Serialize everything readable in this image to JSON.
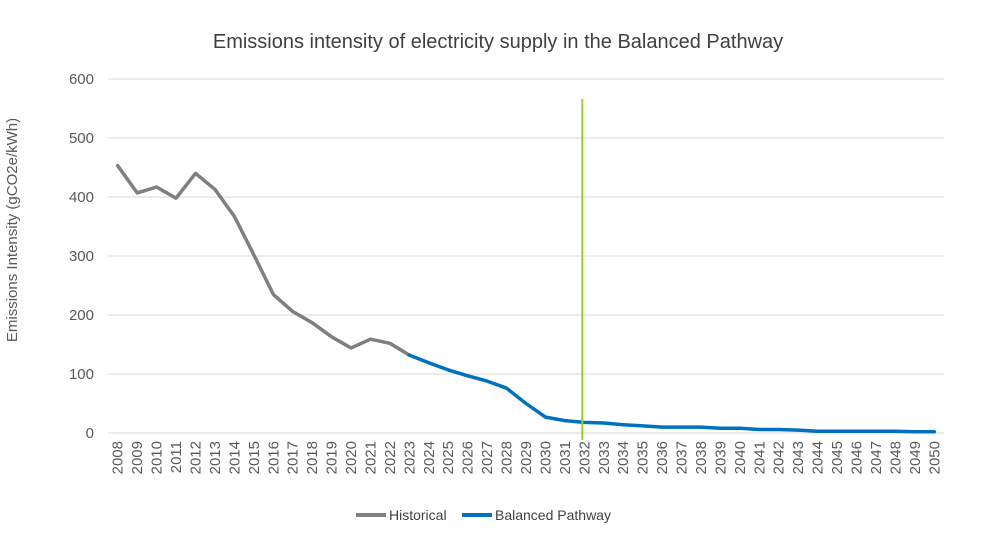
{
  "chart_data": {
    "type": "line",
    "title": "Emissions intensity of electricity supply in the Balanced Pathway",
    "xlabel": "",
    "ylabel": "Emissions Intensity (gCO2e/kWh)",
    "ylim": [
      0,
      600
    ],
    "yticks": [
      0,
      100,
      200,
      300,
      400,
      500,
      600
    ],
    "grid": true,
    "legend_position": "bottom",
    "categories": [
      "2008",
      "2009",
      "2010",
      "2011",
      "2012",
      "2013",
      "2014",
      "2015",
      "2016",
      "2017",
      "2018",
      "2019",
      "2020",
      "2021",
      "2022",
      "2023",
      "2024",
      "2025",
      "2026",
      "2027",
      "2028",
      "2029",
      "2030",
      "2031",
      "2032",
      "2033",
      "2034",
      "2035",
      "2036",
      "2037",
      "2038",
      "2039",
      "2040",
      "2041",
      "2042",
      "2043",
      "2044",
      "2045",
      "2046",
      "2047",
      "2048",
      "2049",
      "2050"
    ],
    "series": [
      {
        "name": "Historical",
        "color": "#7f7f7f",
        "values": [
          453,
          407,
          417,
          398,
          440,
          413,
          367,
          302,
          235,
          206,
          187,
          163,
          144,
          159,
          152,
          132,
          null,
          null,
          null,
          null,
          null,
          null,
          null,
          null,
          null,
          null,
          null,
          null,
          null,
          null,
          null,
          null,
          null,
          null,
          null,
          null,
          null,
          null,
          null,
          null,
          null,
          null,
          null
        ]
      },
      {
        "name": "Balanced Pathway",
        "color": "#0070c0",
        "values": [
          null,
          null,
          null,
          null,
          null,
          null,
          null,
          null,
          null,
          null,
          null,
          null,
          null,
          null,
          null,
          132,
          119,
          107,
          97,
          88,
          76,
          50,
          27,
          21,
          18,
          17,
          14,
          12,
          10,
          10,
          10,
          8,
          8,
          6,
          6,
          5,
          3,
          3,
          3,
          3,
          3,
          2,
          2
        ]
      }
    ],
    "marker_line": {
      "category": "2032",
      "color": "#99cc33"
    }
  }
}
